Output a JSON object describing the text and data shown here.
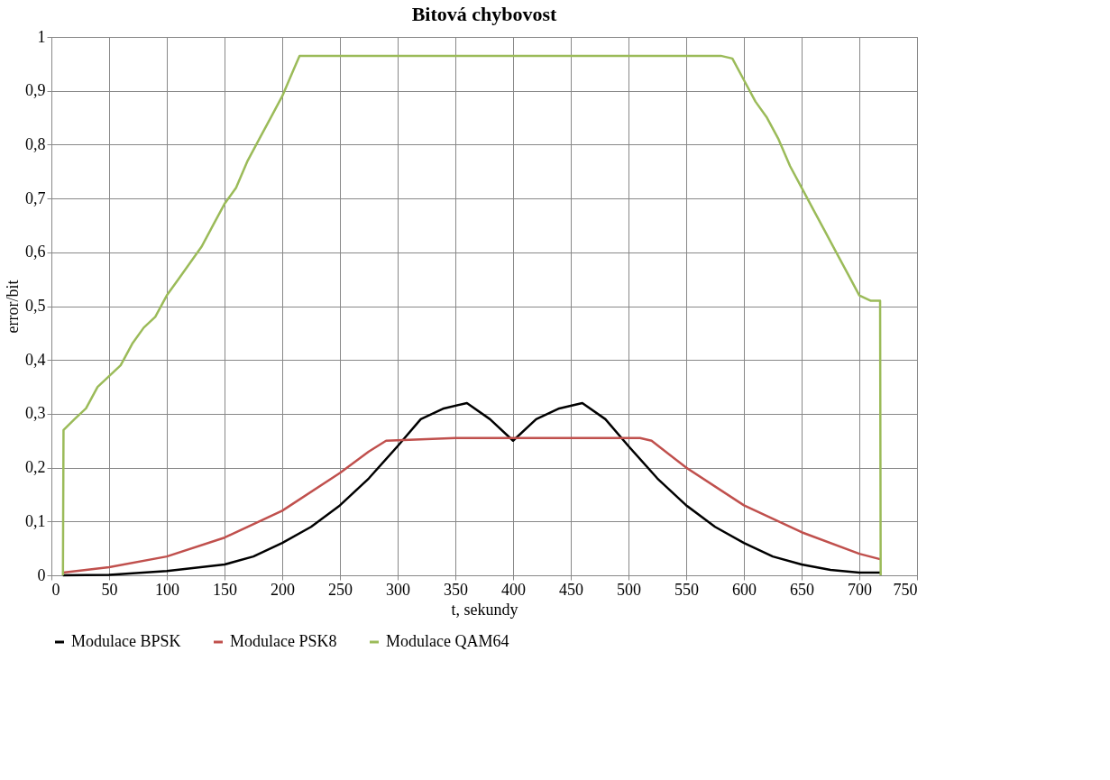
{
  "chart_data": {
    "type": "line",
    "title": "Bitová chybovost",
    "xlabel": "t, sekundy",
    "ylabel": "error/bit",
    "xlim": [
      0,
      750
    ],
    "xticks": [
      0,
      50,
      100,
      150,
      200,
      250,
      300,
      350,
      400,
      450,
      500,
      550,
      600,
      650,
      700,
      750
    ],
    "ylim": [
      0,
      1
    ],
    "yticks": [
      0,
      {
        "value": 0.1,
        "label": "0,1"
      },
      {
        "value": 0.2,
        "label": "0,2"
      },
      {
        "value": 0.3,
        "label": "0,3"
      },
      {
        "value": 0.4,
        "label": "0,4"
      },
      {
        "value": 0.5,
        "label": "0,5"
      },
      {
        "value": 0.6,
        "label": "0,6"
      },
      {
        "value": 0.7,
        "label": "0,7"
      },
      {
        "value": 0.8,
        "label": "0,8"
      },
      {
        "value": 0.9,
        "label": "0,9"
      },
      1
    ],
    "grid": true,
    "legend": "bottom",
    "marker": "none",
    "line_style": "solid",
    "series": [
      {
        "name": "Modulace BPSK",
        "color": "#000000",
        "x": [
          10,
          50,
          100,
          150,
          175,
          200,
          225,
          250,
          275,
          300,
          320,
          340,
          360,
          380,
          400,
          420,
          440,
          460,
          480,
          500,
          525,
          550,
          575,
          600,
          625,
          650,
          675,
          700,
          718
        ],
        "values": [
          0,
          0.001,
          0.008,
          0.02,
          0.035,
          0.06,
          0.09,
          0.13,
          0.18,
          0.24,
          0.29,
          0.31,
          0.32,
          0.29,
          0.25,
          0.29,
          0.31,
          0.32,
          0.29,
          0.24,
          0.18,
          0.13,
          0.09,
          0.06,
          0.035,
          0.02,
          0.01,
          0.005,
          0.005
        ]
      },
      {
        "name": "Modulace PSK8",
        "color": "#c0504d",
        "x": [
          10,
          50,
          100,
          150,
          200,
          250,
          275,
          290,
          350,
          400,
          450,
          510,
          520,
          550,
          600,
          650,
          700,
          718
        ],
        "values": [
          0.005,
          0.015,
          0.035,
          0.07,
          0.12,
          0.19,
          0.23,
          0.25,
          0.255,
          0.255,
          0.255,
          0.255,
          0.25,
          0.2,
          0.13,
          0.08,
          0.04,
          0.03
        ]
      },
      {
        "name": "Modulace QAM64",
        "color": "#9bbb59",
        "x": [
          10,
          10.5,
          20,
          30,
          40,
          50,
          60,
          70,
          80,
          90,
          100,
          110,
          120,
          130,
          140,
          150,
          160,
          170,
          180,
          190,
          200,
          210,
          215,
          250,
          300,
          350,
          400,
          450,
          500,
          550,
          580,
          590,
          600,
          610,
          620,
          630,
          640,
          650,
          660,
          670,
          680,
          690,
          700,
          710,
          718,
          718.5
        ],
        "values": [
          0,
          0.27,
          0.29,
          0.31,
          0.35,
          0.37,
          0.39,
          0.43,
          0.46,
          0.48,
          0.52,
          0.55,
          0.58,
          0.61,
          0.65,
          0.69,
          0.72,
          0.77,
          0.81,
          0.85,
          0.89,
          0.94,
          0.965,
          0.965,
          0.965,
          0.965,
          0.965,
          0.965,
          0.965,
          0.965,
          0.965,
          0.96,
          0.92,
          0.88,
          0.85,
          0.81,
          0.76,
          0.72,
          0.68,
          0.64,
          0.6,
          0.56,
          0.52,
          0.51,
          0.51,
          0
        ]
      }
    ]
  }
}
